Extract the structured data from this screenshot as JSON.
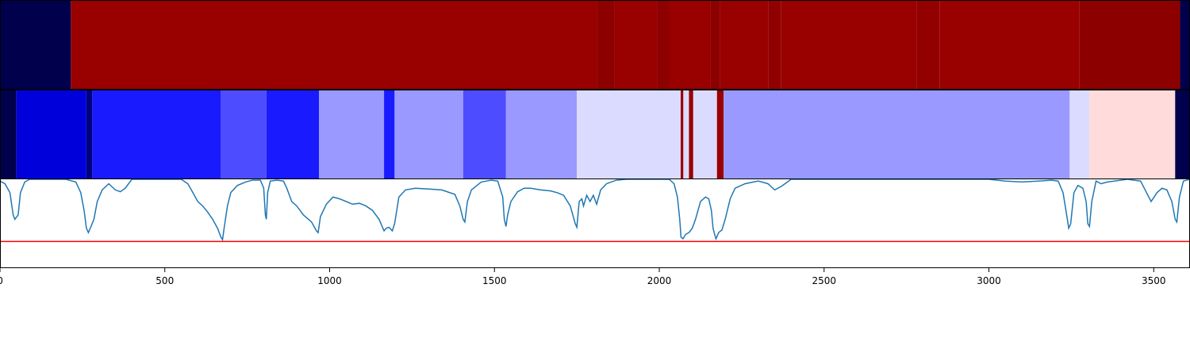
{
  "chart_data": [
    {
      "type": "heatmap",
      "colormap": "seismic",
      "segments": [
        {
          "start": 0,
          "end": 215,
          "value": -1.0
        },
        {
          "start": 215,
          "end": 1810,
          "value": 0.9
        },
        {
          "start": 1810,
          "end": 1865,
          "value": 0.95
        },
        {
          "start": 1865,
          "end": 1995,
          "value": 0.9
        },
        {
          "start": 1995,
          "end": 2030,
          "value": 0.95
        },
        {
          "start": 2030,
          "end": 2155,
          "value": 0.9
        },
        {
          "start": 2155,
          "end": 2185,
          "value": 0.95
        },
        {
          "start": 2185,
          "end": 2330,
          "value": 0.9
        },
        {
          "start": 2330,
          "end": 2370,
          "value": 0.93
        },
        {
          "start": 2370,
          "end": 2780,
          "value": 0.9
        },
        {
          "start": 2780,
          "end": 2850,
          "value": 0.92
        },
        {
          "start": 2850,
          "end": 3275,
          "value": 0.9
        },
        {
          "start": 3275,
          "end": 3580,
          "value": 0.95
        },
        {
          "start": 3580,
          "end": 3610,
          "value": -1.0
        }
      ]
    },
    {
      "type": "heatmap",
      "colormap": "seismic",
      "segments": [
        {
          "start": 0,
          "end": 50,
          "value": -1.0
        },
        {
          "start": 50,
          "end": 262,
          "value": -0.6
        },
        {
          "start": 262,
          "end": 280,
          "value": -0.85
        },
        {
          "start": 280,
          "end": 670,
          "value": -0.45
        },
        {
          "start": 670,
          "end": 808,
          "value": -0.35
        },
        {
          "start": 808,
          "end": 968,
          "value": -0.45
        },
        {
          "start": 968,
          "end": 1165,
          "value": -0.2
        },
        {
          "start": 1165,
          "end": 1197,
          "value": -0.45
        },
        {
          "start": 1197,
          "end": 1405,
          "value": -0.2
        },
        {
          "start": 1405,
          "end": 1535,
          "value": -0.35
        },
        {
          "start": 1535,
          "end": 1750,
          "value": -0.2
        },
        {
          "start": 1750,
          "end": 2065,
          "value": -0.07
        },
        {
          "start": 2065,
          "end": 2073,
          "value": 0.9
        },
        {
          "start": 2073,
          "end": 2090,
          "value": -0.07
        },
        {
          "start": 2090,
          "end": 2103,
          "value": 0.9
        },
        {
          "start": 2103,
          "end": 2175,
          "value": -0.07
        },
        {
          "start": 2175,
          "end": 2195,
          "value": 0.9
        },
        {
          "start": 2195,
          "end": 3245,
          "value": -0.2
        },
        {
          "start": 3245,
          "end": 3305,
          "value": -0.07
        },
        {
          "start": 3305,
          "end": 3565,
          "value": 0.07
        },
        {
          "start": 3565,
          "end": 3610,
          "value": -1.0
        }
      ]
    },
    {
      "type": "line",
      "xlim": [
        0,
        3610
      ],
      "ylim": [
        0,
        1
      ],
      "xticks": [
        0,
        500,
        1000,
        1500,
        2000,
        2500,
        3000,
        3500
      ],
      "threshold": {
        "y": 0.3,
        "color": "#ff0000"
      },
      "series": [
        {
          "color": "#1f77b4",
          "points": [
            [
              0,
              0.98
            ],
            [
              15,
              0.95
            ],
            [
              30,
              0.85
            ],
            [
              40,
              0.6
            ],
            [
              45,
              0.55
            ],
            [
              55,
              0.6
            ],
            [
              62,
              0.85
            ],
            [
              75,
              0.97
            ],
            [
              90,
              1.0
            ],
            [
              200,
              1.0
            ],
            [
              230,
              0.97
            ],
            [
              245,
              0.85
            ],
            [
              255,
              0.65
            ],
            [
              262,
              0.45
            ],
            [
              268,
              0.4
            ],
            [
              275,
              0.46
            ],
            [
              285,
              0.55
            ],
            [
              295,
              0.75
            ],
            [
              310,
              0.88
            ],
            [
              330,
              0.95
            ],
            [
              350,
              0.88
            ],
            [
              365,
              0.86
            ],
            [
              380,
              0.9
            ],
            [
              400,
              1.0
            ],
            [
              550,
              1.0
            ],
            [
              570,
              0.95
            ],
            [
              585,
              0.85
            ],
            [
              600,
              0.75
            ],
            [
              615,
              0.7
            ],
            [
              630,
              0.63
            ],
            [
              645,
              0.55
            ],
            [
              660,
              0.45
            ],
            [
              670,
              0.35
            ],
            [
              675,
              0.32
            ],
            [
              680,
              0.45
            ],
            [
              690,
              0.7
            ],
            [
              700,
              0.85
            ],
            [
              720,
              0.93
            ],
            [
              745,
              0.97
            ],
            [
              765,
              0.99
            ],
            [
              790,
              0.99
            ],
            [
              800,
              0.9
            ],
            [
              805,
              0.6
            ],
            [
              808,
              0.55
            ],
            [
              812,
              0.85
            ],
            [
              820,
              0.98
            ],
            [
              840,
              0.99
            ],
            [
              860,
              0.98
            ],
            [
              870,
              0.9
            ],
            [
              885,
              0.75
            ],
            [
              900,
              0.7
            ],
            [
              920,
              0.6
            ],
            [
              945,
              0.52
            ],
            [
              960,
              0.42
            ],
            [
              965,
              0.4
            ],
            [
              972,
              0.58
            ],
            [
              990,
              0.72
            ],
            [
              1010,
              0.8
            ],
            [
              1030,
              0.78
            ],
            [
              1050,
              0.75
            ],
            [
              1070,
              0.72
            ],
            [
              1090,
              0.73
            ],
            [
              1110,
              0.7
            ],
            [
              1130,
              0.65
            ],
            [
              1150,
              0.55
            ],
            [
              1165,
              0.42
            ],
            [
              1172,
              0.45
            ],
            [
              1180,
              0.46
            ],
            [
              1190,
              0.42
            ],
            [
              1197,
              0.5
            ],
            [
              1210,
              0.8
            ],
            [
              1230,
              0.88
            ],
            [
              1260,
              0.9
            ],
            [
              1300,
              0.89
            ],
            [
              1340,
              0.88
            ],
            [
              1380,
              0.83
            ],
            [
              1395,
              0.7
            ],
            [
              1405,
              0.55
            ],
            [
              1410,
              0.52
            ],
            [
              1418,
              0.75
            ],
            [
              1430,
              0.88
            ],
            [
              1460,
              0.97
            ],
            [
              1490,
              0.99
            ],
            [
              1510,
              0.98
            ],
            [
              1525,
              0.8
            ],
            [
              1530,
              0.55
            ],
            [
              1535,
              0.47
            ],
            [
              1540,
              0.6
            ],
            [
              1550,
              0.75
            ],
            [
              1570,
              0.86
            ],
            [
              1590,
              0.9
            ],
            [
              1610,
              0.9
            ],
            [
              1640,
              0.88
            ],
            [
              1670,
              0.87
            ],
            [
              1690,
              0.85
            ],
            [
              1710,
              0.82
            ],
            [
              1730,
              0.7
            ],
            [
              1745,
              0.5
            ],
            [
              1750,
              0.46
            ],
            [
              1757,
              0.75
            ],
            [
              1765,
              0.78
            ],
            [
              1770,
              0.7
            ],
            [
              1780,
              0.82
            ],
            [
              1790,
              0.75
            ],
            [
              1800,
              0.82
            ],
            [
              1810,
              0.72
            ],
            [
              1822,
              0.88
            ],
            [
              1840,
              0.95
            ],
            [
              1870,
              0.99
            ],
            [
              1900,
              1.0
            ],
            [
              2030,
              1.0
            ],
            [
              2045,
              0.95
            ],
            [
              2055,
              0.8
            ],
            [
              2062,
              0.55
            ],
            [
              2066,
              0.35
            ],
            [
              2072,
              0.33
            ],
            [
              2080,
              0.38
            ],
            [
              2090,
              0.4
            ],
            [
              2100,
              0.45
            ],
            [
              2110,
              0.55
            ],
            [
              2125,
              0.75
            ],
            [
              2140,
              0.8
            ],
            [
              2150,
              0.78
            ],
            [
              2158,
              0.65
            ],
            [
              2163,
              0.45
            ],
            [
              2168,
              0.38
            ],
            [
              2172,
              0.33
            ],
            [
              2180,
              0.4
            ],
            [
              2190,
              0.43
            ],
            [
              2200,
              0.55
            ],
            [
              2215,
              0.78
            ],
            [
              2230,
              0.9
            ],
            [
              2260,
              0.95
            ],
            [
              2300,
              0.98
            ],
            [
              2330,
              0.95
            ],
            [
              2350,
              0.88
            ],
            [
              2370,
              0.92
            ],
            [
              2400,
              1.0
            ],
            [
              3000,
              1.0
            ],
            [
              3050,
              0.98
            ],
            [
              3100,
              0.97
            ],
            [
              3150,
              0.98
            ],
            [
              3190,
              0.99
            ],
            [
              3210,
              0.98
            ],
            [
              3225,
              0.85
            ],
            [
              3238,
              0.55
            ],
            [
              3242,
              0.45
            ],
            [
              3248,
              0.5
            ],
            [
              3258,
              0.85
            ],
            [
              3270,
              0.93
            ],
            [
              3285,
              0.9
            ],
            [
              3295,
              0.75
            ],
            [
              3300,
              0.5
            ],
            [
              3305,
              0.47
            ],
            [
              3312,
              0.75
            ],
            [
              3325,
              0.98
            ],
            [
              3340,
              0.95
            ],
            [
              3360,
              0.97
            ],
            [
              3400,
              0.99
            ],
            [
              3420,
              1.0
            ],
            [
              3460,
              0.98
            ],
            [
              3478,
              0.85
            ],
            [
              3492,
              0.75
            ],
            [
              3510,
              0.85
            ],
            [
              3525,
              0.9
            ],
            [
              3540,
              0.88
            ],
            [
              3555,
              0.75
            ],
            [
              3565,
              0.55
            ],
            [
              3570,
              0.52
            ],
            [
              3578,
              0.8
            ],
            [
              3590,
              0.98
            ],
            [
              3610,
              1.0
            ]
          ]
        }
      ]
    }
  ]
}
